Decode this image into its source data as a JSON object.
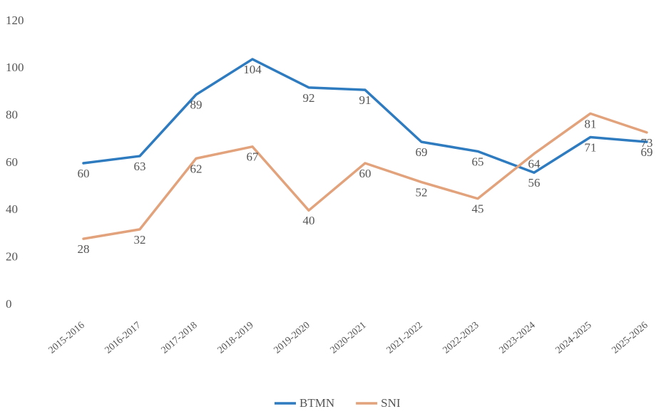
{
  "chart_data": {
    "type": "line",
    "categories": [
      "2015-2016",
      "2016-2017",
      "2017-2018",
      "2018-2019",
      "2019-2020",
      "2020-2021",
      "2021-2022",
      "2022-2023",
      "2023-2024",
      "2024-2025",
      "2025-2026"
    ],
    "series": [
      {
        "name": "BTMN",
        "color": "#2e7bc0",
        "values": [
          60,
          63,
          89,
          104,
          92,
          91,
          69,
          65,
          56,
          71,
          69
        ]
      },
      {
        "name": "SNI",
        "color": "#e2a37c",
        "values": [
          28,
          32,
          62,
          67,
          40,
          60,
          52,
          45,
          64,
          81,
          73
        ]
      }
    ],
    "ylim": [
      0,
      120
    ],
    "yticks": [
      0,
      20,
      40,
      60,
      80,
      100,
      120
    ],
    "grid": false,
    "legend": "bottom"
  }
}
